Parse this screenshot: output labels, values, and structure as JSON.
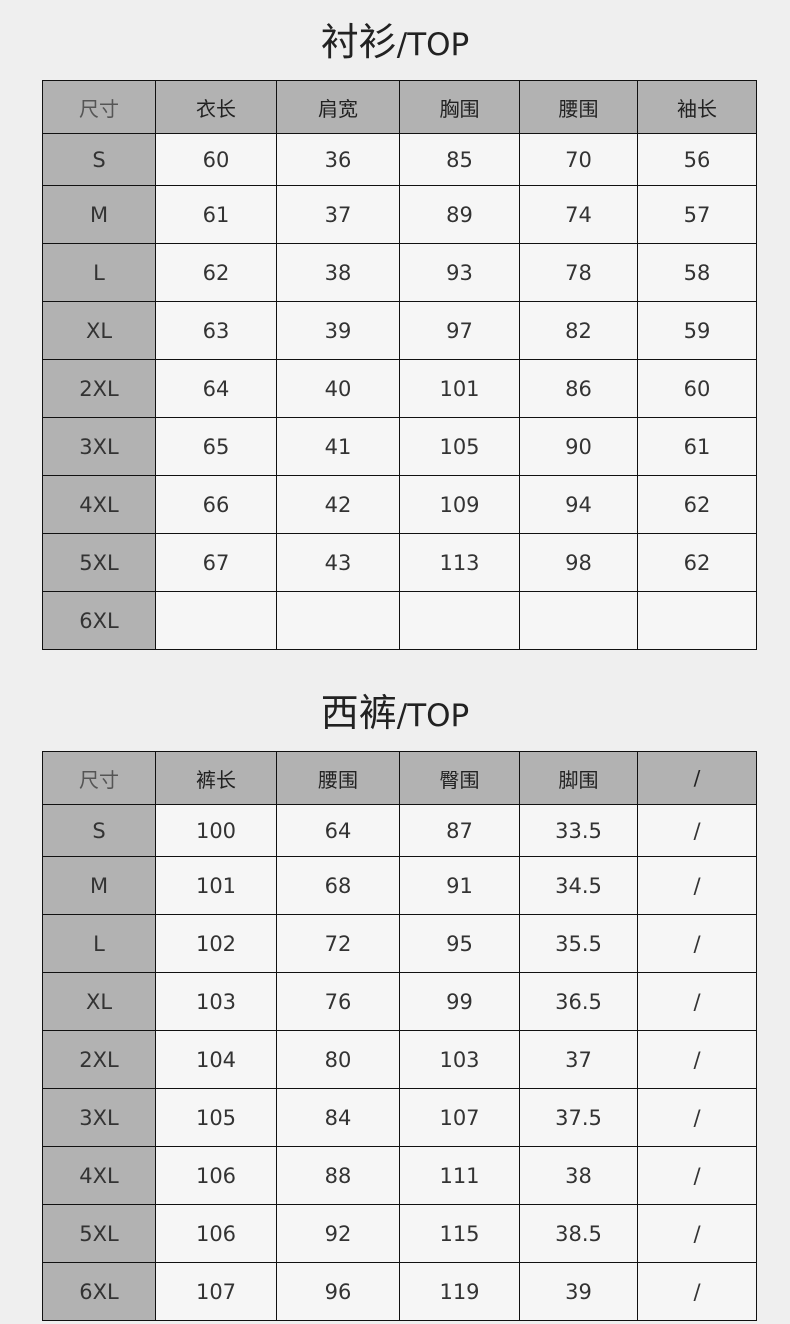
{
  "tables": [
    {
      "title_cn": "衬衫",
      "title_en": "/TOP",
      "headers": [
        "尺寸",
        "衣长",
        "肩宽",
        "胸围",
        "腰围",
        "袖长"
      ],
      "rows": [
        [
          "S",
          "60",
          "36",
          "85",
          "70",
          "56"
        ],
        [
          "M",
          "61",
          "37",
          "89",
          "74",
          "57"
        ],
        [
          "L",
          "62",
          "38",
          "93",
          "78",
          "58"
        ],
        [
          "XL",
          "63",
          "39",
          "97",
          "82",
          "59"
        ],
        [
          "2XL",
          "64",
          "40",
          "101",
          "86",
          "60"
        ],
        [
          "3XL",
          "65",
          "41",
          "105",
          "90",
          "61"
        ],
        [
          "4XL",
          "66",
          "42",
          "109",
          "94",
          "62"
        ],
        [
          "5XL",
          "67",
          "43",
          "113",
          "98",
          "62"
        ],
        [
          "6XL",
          "",
          "",
          "",
          "",
          ""
        ]
      ]
    },
    {
      "title_cn": "西裤",
      "title_en": "/TOP",
      "headers": [
        "尺寸",
        "裤长",
        "腰围",
        "臀围",
        "脚围",
        "/"
      ],
      "rows": [
        [
          "S",
          "100",
          "64",
          "87",
          "33.5",
          "/"
        ],
        [
          "M",
          "101",
          "68",
          "91",
          "34.5",
          "/"
        ],
        [
          "L",
          "102",
          "72",
          "95",
          "35.5",
          "/"
        ],
        [
          "XL",
          "103",
          "76",
          "99",
          "36.5",
          "/"
        ],
        [
          "2XL",
          "104",
          "80",
          "103",
          "37",
          "/"
        ],
        [
          "3XL",
          "105",
          "84",
          "107",
          "37.5",
          "/"
        ],
        [
          "4XL",
          "106",
          "88",
          "111",
          "38",
          "/"
        ],
        [
          "5XL",
          "106",
          "92",
          "115",
          "38.5",
          "/"
        ],
        [
          "6XL",
          "107",
          "96",
          "119",
          "39",
          "/"
        ]
      ]
    }
  ]
}
